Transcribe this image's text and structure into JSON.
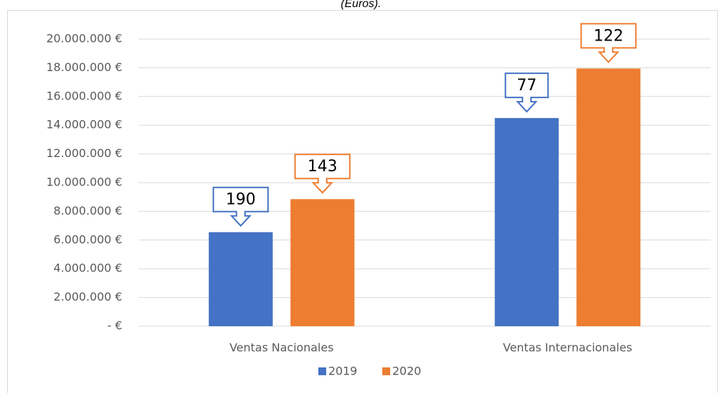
{
  "chart_data": {
    "type": "bar",
    "title": "(Euros).",
    "categories": [
      "Ventas Nacionales",
      "Ventas Internacionales"
    ],
    "series": [
      {
        "name": "2019",
        "color": "#4472c4",
        "values": [
          6550000,
          14500000
        ],
        "labels": [
          "190",
          "77"
        ]
      },
      {
        "name": "2020",
        "color": "#ed7d31",
        "values": [
          8850000,
          17950000
        ],
        "labels": [
          "143",
          "122"
        ]
      }
    ],
    "ylim": [
      0,
      20000000
    ],
    "yticks": [
      {
        "value": 0,
        "label": "-  €"
      },
      {
        "value": 2000000,
        "label": "2.000.000 €"
      },
      {
        "value": 4000000,
        "label": "4.000.000 €"
      },
      {
        "value": 6000000,
        "label": "6.000.000 €"
      },
      {
        "value": 8000000,
        "label": "8.000.000 €"
      },
      {
        "value": 10000000,
        "label": "10.000.000 €"
      },
      {
        "value": 12000000,
        "label": "12.000.000 €"
      },
      {
        "value": 14000000,
        "label": "14.000.000 €"
      },
      {
        "value": 16000000,
        "label": "16.000.000 €"
      },
      {
        "value": 18000000,
        "label": "18.000.000 €"
      },
      {
        "value": 20000000,
        "label": "20.000.000 €"
      }
    ],
    "grid": true,
    "legend": "bottom"
  }
}
